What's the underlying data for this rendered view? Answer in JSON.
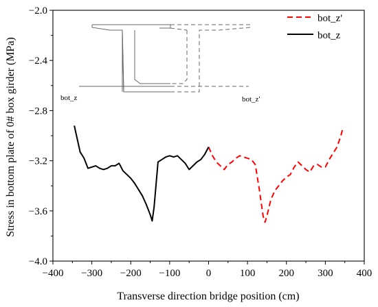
{
  "chart_data": {
    "type": "line",
    "xlabel": "Transverse direction bridge position (cm)",
    "ylabel": "Stress in bottom plate of 0# box girder (MPa)",
    "xlim": [
      -400,
      400
    ],
    "ylim": [
      -4.0,
      -2.0
    ],
    "xticks": [
      -400,
      -300,
      -200,
      -100,
      0,
      100,
      200,
      300,
      400
    ],
    "yticks": [
      -2.0,
      -2.4,
      -2.8,
      -3.2,
      -3.6,
      -4.0
    ],
    "xtick_labels": [
      "−400",
      "−300",
      "−200",
      "−100",
      "0",
      "100",
      "200",
      "300",
      "400"
    ],
    "ytick_labels": [
      "−2.0",
      "−2.4",
      "−2.8",
      "−3.2",
      "−3.6",
      "−4.0"
    ],
    "grid": false,
    "legend_position": "top-right",
    "series": [
      {
        "name": "bot_z'",
        "color": "#ff0000",
        "dash": "dashed",
        "x": [
          0,
          10,
          20,
          30,
          40,
          50,
          60,
          70,
          80,
          90,
          100,
          110,
          120,
          130,
          140,
          145,
          150,
          160,
          170,
          180,
          190,
          200,
          210,
          220,
          230,
          240,
          250,
          260,
          270,
          280,
          290,
          300,
          310,
          320,
          330,
          340,
          345
        ],
        "y": [
          -3.09,
          -3.16,
          -3.21,
          -3.24,
          -3.27,
          -3.23,
          -3.21,
          -3.18,
          -3.16,
          -3.17,
          -3.18,
          -3.19,
          -3.23,
          -3.42,
          -3.64,
          -3.69,
          -3.64,
          -3.51,
          -3.44,
          -3.4,
          -3.36,
          -3.33,
          -3.31,
          -3.25,
          -3.21,
          -3.24,
          -3.27,
          -3.29,
          -3.24,
          -3.23,
          -3.25,
          -3.25,
          -3.19,
          -3.14,
          -3.09,
          -3.0,
          -2.94
        ]
      },
      {
        "name": "bot_z",
        "color": "#000000",
        "dash": "solid",
        "x": [
          -345,
          -330,
          -320,
          -310,
          -300,
          -290,
          -280,
          -270,
          -260,
          -250,
          -240,
          -230,
          -220,
          -210,
          -200,
          -190,
          -180,
          -170,
          -160,
          -150,
          -145,
          -140,
          -130,
          -120,
          -110,
          -100,
          -90,
          -80,
          -70,
          -60,
          -50,
          -40,
          -30,
          -20,
          -10,
          0
        ],
        "y": [
          -2.92,
          -3.13,
          -3.18,
          -3.26,
          -3.25,
          -3.24,
          -3.26,
          -3.27,
          -3.26,
          -3.24,
          -3.24,
          -3.22,
          -3.28,
          -3.31,
          -3.34,
          -3.38,
          -3.43,
          -3.48,
          -3.55,
          -3.63,
          -3.68,
          -3.57,
          -3.21,
          -3.19,
          -3.17,
          -3.16,
          -3.17,
          -3.16,
          -3.19,
          -3.22,
          -3.27,
          -3.24,
          -3.21,
          -3.19,
          -3.15,
          -3.09
        ]
      }
    ],
    "inset": {
      "description_labels": [
        "bot_z",
        "bot_z'"
      ]
    }
  },
  "legend": {
    "items": [
      "bot_z'",
      "bot_z"
    ]
  },
  "inset_labels": {
    "left": "bot_z",
    "right": "bot_z'"
  }
}
